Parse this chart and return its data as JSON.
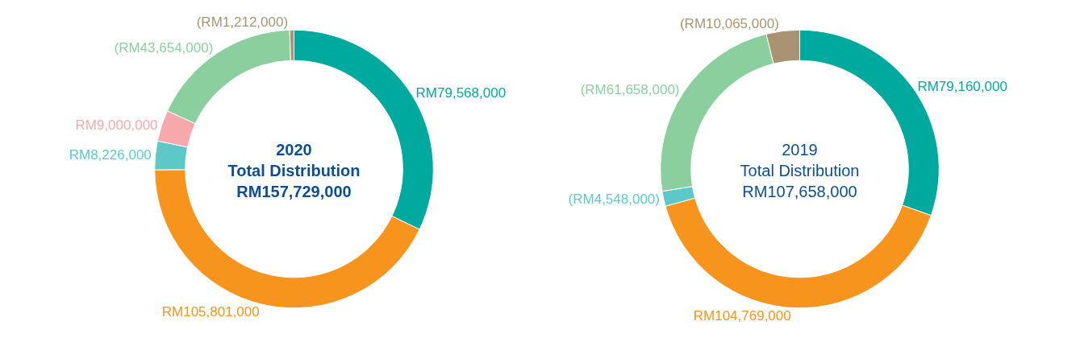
{
  "chart_data": [
    {
      "type": "donut",
      "title": "2020\nTotal Distribution\nRM157,729,000",
      "categories": [
        null,
        null,
        null,
        null,
        null,
        null
      ],
      "values": [
        79568000,
        105801000,
        8226000,
        9000000,
        43654000,
        1212000
      ],
      "value_labels": [
        "RM79,568,000",
        "RM105,801,000",
        "RM8,226,000",
        "RM9,000,000",
        "(RM43,654,000)",
        "(RM1,212,000)"
      ],
      "colors": [
        "#00a99d",
        "#f7941d",
        "#5ec8c8",
        "#f7a8ab",
        "#8ccf9e",
        "#a89473"
      ]
    },
    {
      "type": "donut",
      "title": "2019\nTotal Distribution\nRM107,658,000",
      "categories": [
        null,
        null,
        null,
        null,
        null
      ],
      "values": [
        79160000,
        104769000,
        4548000,
        61658000,
        10065000
      ],
      "value_labels": [
        "RM79,160,000",
        "RM104,769,000",
        "(RM4,548,000)",
        "(RM61,658,000)",
        "(RM10,065,000)"
      ],
      "colors": [
        "#00a99d",
        "#f7941d",
        "#5ec8c8",
        "#8ccf9e",
        "#a89473"
      ]
    }
  ]
}
